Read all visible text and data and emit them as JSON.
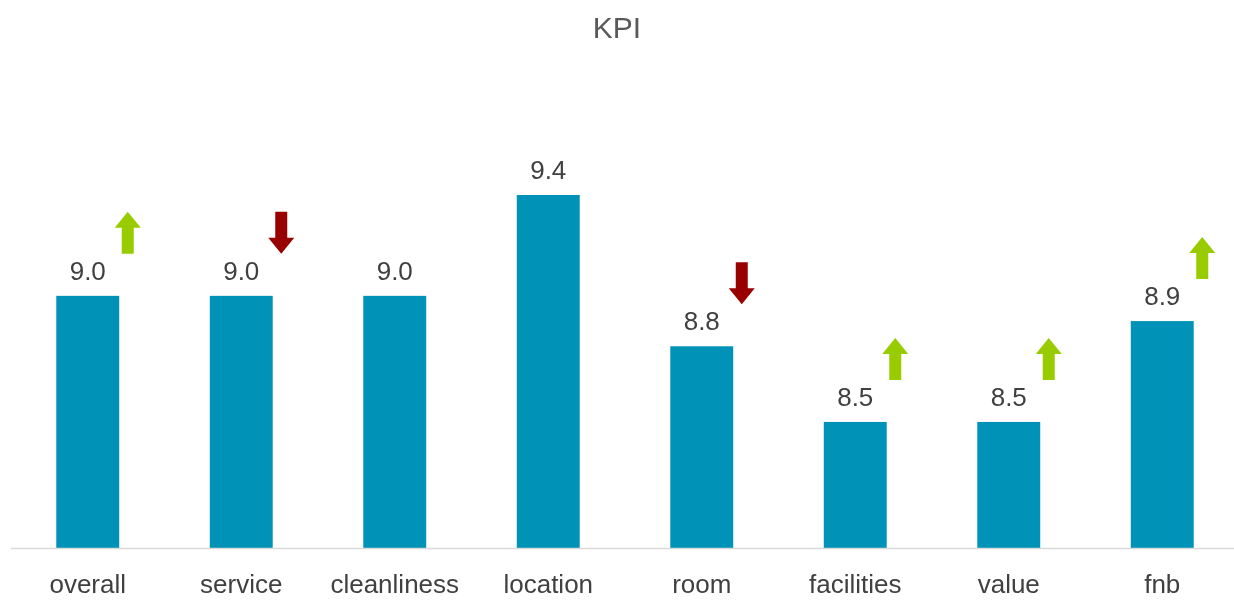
{
  "chart_data": {
    "type": "bar",
    "title": "KPI",
    "categories": [
      "overall",
      "service",
      "cleanliness",
      "location",
      "room",
      "facilities",
      "value",
      "fnb"
    ],
    "values": [
      9.0,
      9.0,
      9.0,
      9.4,
      8.8,
      8.5,
      8.5,
      8.9
    ],
    "value_labels": [
      "9.0",
      "9.0",
      "9.0",
      "9.4",
      "8.8",
      "8.5",
      "8.5",
      "8.9"
    ],
    "color": "#0093b7",
    "ylim": [
      8,
      9.4
    ]
  }
}
